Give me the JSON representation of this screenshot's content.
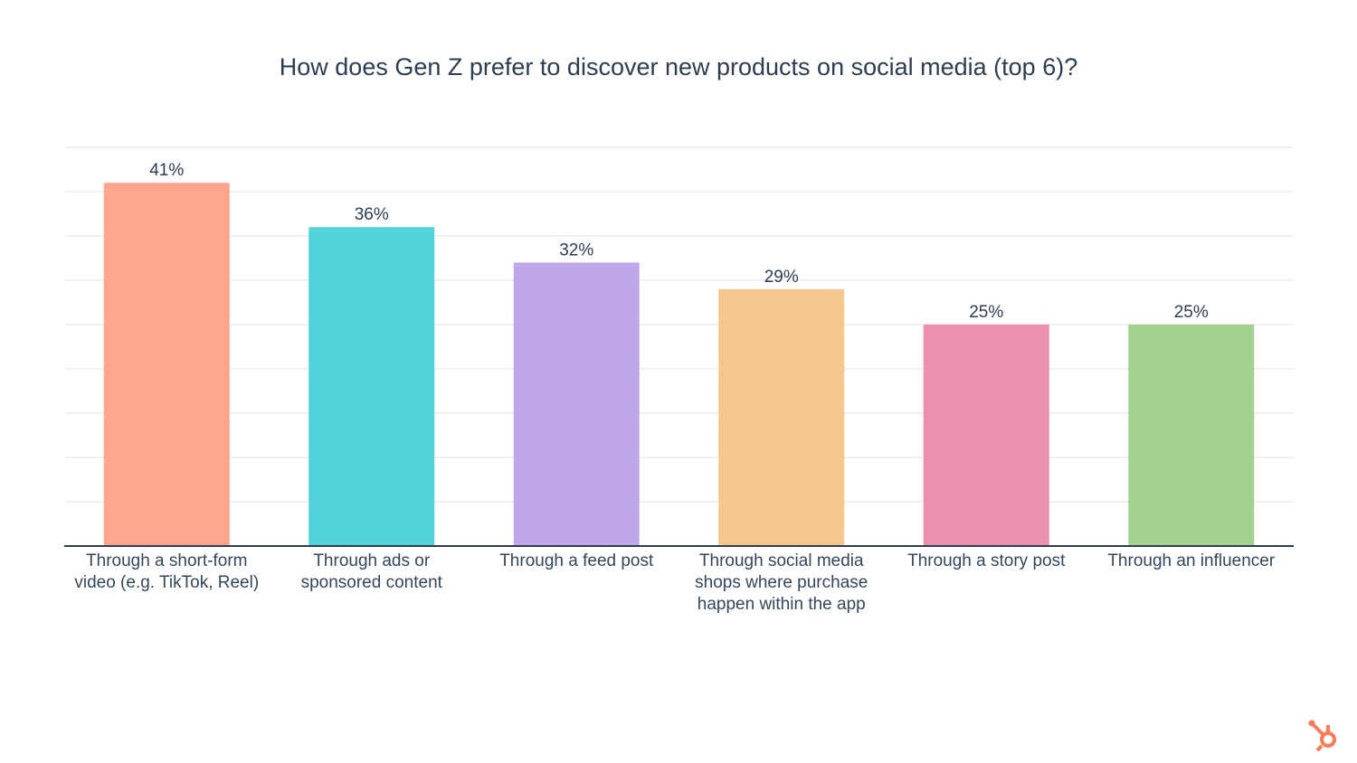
{
  "chart_data": {
    "type": "bar",
    "title": "How does Gen Z prefer to discover new products on social media (top 6)?",
    "categories": [
      "Through a short-form video (e.g. TikTok, Reel)",
      "Through ads or sponsored content",
      "Through a feed post",
      "Through social media shops where purchase happen within the app",
      "Through a story post",
      "Through an influencer"
    ],
    "values": [
      41,
      36,
      32,
      29,
      25,
      25
    ],
    "value_labels": [
      "41%",
      "36%",
      "32%",
      "29%",
      "25%",
      "25%"
    ],
    "colors": [
      "#fea58e",
      "#51d3d9",
      "#bea8e9",
      "#f5c78e",
      "#ea90b1",
      "#a2d28f"
    ],
    "ylim": [
      0,
      45
    ],
    "yticks": [
      0,
      5,
      10,
      15,
      20,
      25,
      30,
      35,
      40,
      45
    ],
    "grid": true
  }
}
